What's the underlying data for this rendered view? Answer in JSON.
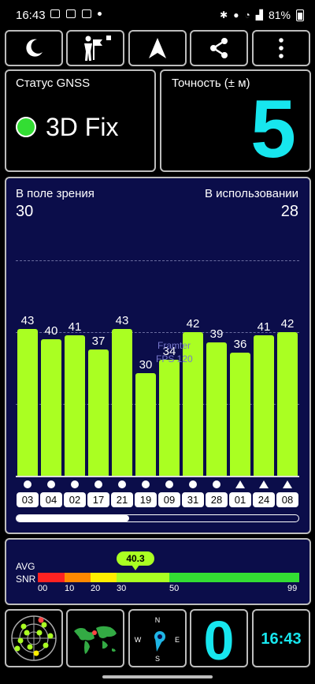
{
  "status_bar": {
    "time": "16:43",
    "battery": "81%",
    "left_icons": [
      "image-icon",
      "screenshot-icon",
      "hd-icon",
      "dot-icon"
    ],
    "right_icons": [
      "bluetooth-icon",
      "location-icon",
      "wifi-icon",
      "signal-icon",
      "battery-icon"
    ]
  },
  "toolbar": {
    "buttons": [
      {
        "name": "night-mode-button",
        "icon": "moon-icon"
      },
      {
        "name": "landmark-button",
        "icon": "person-flag-icon"
      },
      {
        "name": "navigation-button",
        "icon": "arrow-up-icon"
      },
      {
        "name": "share-button",
        "icon": "share-icon"
      },
      {
        "name": "menu-button",
        "icon": "more-vert-icon"
      }
    ]
  },
  "gnss_status": {
    "label": "Статус GNSS",
    "value": "3D Fix",
    "indicator_color": "#33dd33"
  },
  "accuracy": {
    "label": "Точность (± м)",
    "value": "5",
    "color": "#17e6ee"
  },
  "sky_view": {
    "in_view_label": "В поле зрения",
    "in_view_value": "30",
    "in_use_label": "В использовании",
    "in_use_value": "28",
    "bar_color": "#aaff22",
    "watermark_line1": "Framter",
    "watermark_line2": "FPS 120",
    "scroll_position": 0.4,
    "satellites": [
      {
        "id": "03",
        "snr": "43",
        "shape": "circle"
      },
      {
        "id": "04",
        "snr": "40",
        "shape": "circle"
      },
      {
        "id": "02",
        "snr": "41",
        "shape": "circle"
      },
      {
        "id": "17",
        "snr": "37",
        "shape": "circle"
      },
      {
        "id": "21",
        "snr": "43",
        "shape": "circle"
      },
      {
        "id": "19",
        "snr": "30",
        "shape": "circle"
      },
      {
        "id": "09",
        "snr": "34",
        "shape": "circle"
      },
      {
        "id": "31",
        "snr": "42",
        "shape": "circle"
      },
      {
        "id": "28",
        "snr": "39",
        "shape": "circle"
      },
      {
        "id": "01",
        "snr": "36",
        "shape": "triangle"
      },
      {
        "id": "24",
        "snr": "41",
        "shape": "triangle"
      },
      {
        "id": "08",
        "snr": "42",
        "shape": "triangle"
      }
    ]
  },
  "snr": {
    "avg_label": "AVG",
    "snr_label": "SNR",
    "avg_value": "40.3",
    "ticks": [
      "00",
      "10",
      "20",
      "30",
      "50",
      "99"
    ],
    "scale_colors": [
      "#ff2222",
      "#ff8800",
      "#ffee00",
      "#aaff22",
      "#33dd33"
    ]
  },
  "bottom": {
    "satellites_count": "0",
    "clock": "16:43",
    "compass_letters": {
      "n": "N",
      "e": "E",
      "s": "S",
      "w": "W"
    }
  }
}
